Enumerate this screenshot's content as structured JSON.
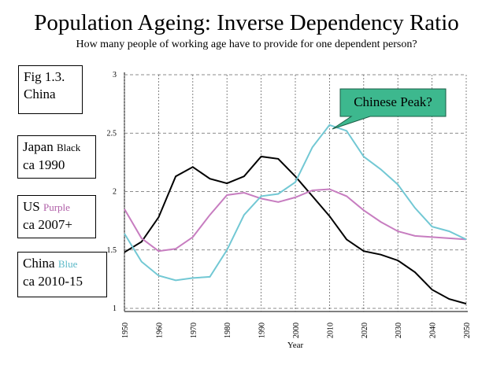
{
  "chart_data": {
    "type": "line",
    "title": "Population Ageing: Inverse Dependency Ratio",
    "subtitle": "How many people of working age have to provide for one dependent person?",
    "fig_label": "Fig 1.3.",
    "fig_subject": "China",
    "x_label": "Year",
    "x": [
      1950,
      1955,
      1960,
      1965,
      1970,
      1975,
      1980,
      1985,
      1990,
      1995,
      2000,
      2005,
      2010,
      2015,
      2020,
      2025,
      2030,
      2035,
      2040,
      2045,
      2050
    ],
    "xlim": [
      1950,
      2050
    ],
    "xticks": [
      1950,
      1960,
      1970,
      1980,
      1990,
      2000,
      2010,
      2020,
      2030,
      2040,
      2050
    ],
    "ylim": [
      1,
      3
    ],
    "yticks": [
      1,
      1.5,
      2,
      2.5,
      3
    ],
    "grid": true,
    "series": [
      {
        "name": "Japan",
        "color_label": "Black",
        "note": "ca 1990",
        "color": "#000000",
        "values": [
          1.48,
          1.57,
          1.78,
          2.13,
          2.21,
          2.11,
          2.07,
          2.13,
          2.3,
          2.28,
          2.13,
          1.96,
          1.79,
          1.59,
          1.49,
          1.46,
          1.41,
          1.31,
          1.16,
          1.08,
          1.04
        ]
      },
      {
        "name": "US",
        "color_label": "Purple",
        "note": "ca 2007+",
        "color": "#c77dc0",
        "values": [
          1.85,
          1.6,
          1.49,
          1.51,
          1.61,
          1.8,
          1.97,
          1.99,
          1.94,
          1.91,
          1.95,
          2.01,
          2.02,
          1.96,
          1.84,
          1.74,
          1.66,
          1.62,
          1.61,
          1.6,
          1.59
        ]
      },
      {
        "name": "China",
        "color_label": "Blue",
        "note": "ca 2010-15",
        "color": "#72c8d4",
        "values": [
          1.64,
          1.4,
          1.28,
          1.24,
          1.26,
          1.27,
          1.5,
          1.8,
          1.96,
          1.98,
          2.08,
          2.38,
          2.57,
          2.52,
          2.3,
          2.19,
          2.06,
          1.86,
          1.7,
          1.66,
          1.59
        ]
      }
    ],
    "annotation": "Chinese Peak?"
  }
}
